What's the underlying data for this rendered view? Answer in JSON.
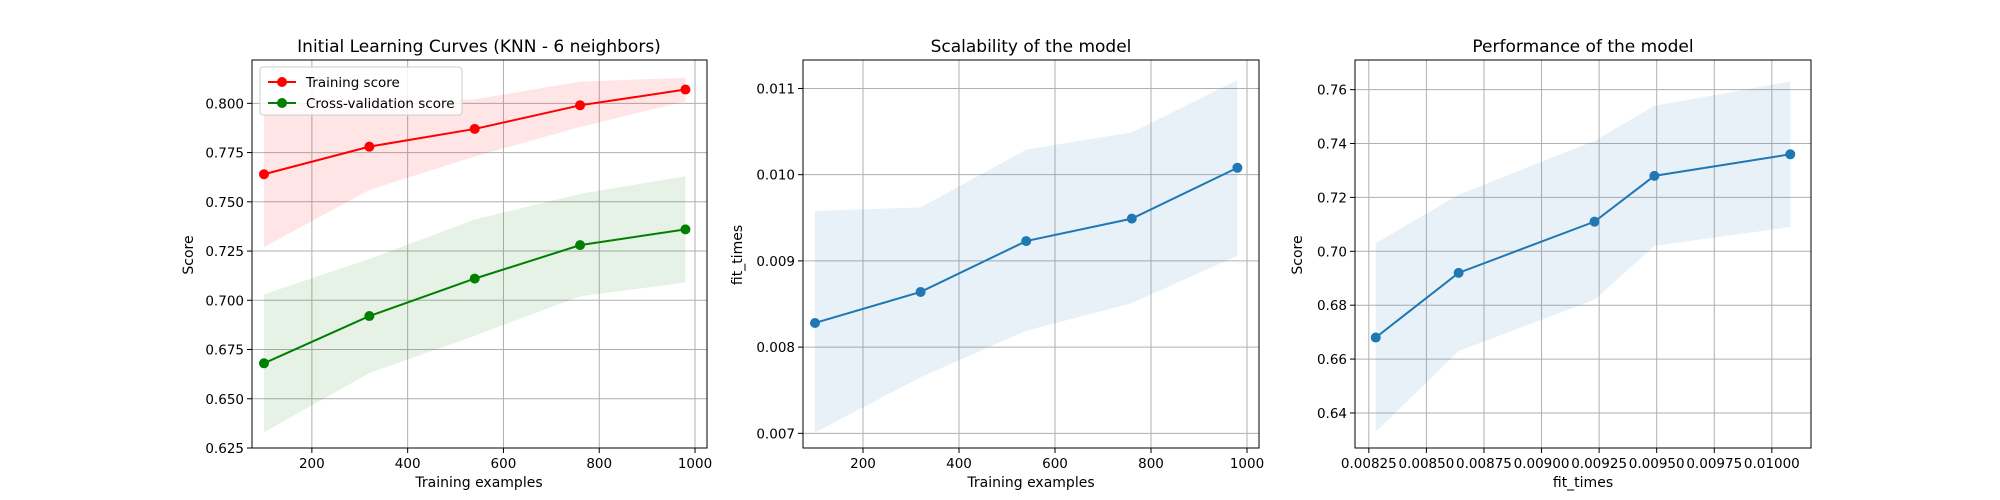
{
  "chart_data": [
    {
      "type": "line",
      "title": "Initial Learning Curves (KNN - 6 neighbors)",
      "xlabel": "Training examples",
      "ylabel": "Score",
      "xlim": [
        75,
        1025
      ],
      "ylim": [
        0.625,
        0.822
      ],
      "xticks": [
        200,
        400,
        600,
        800,
        1000
      ],
      "yticks": [
        0.625,
        0.65,
        0.675,
        0.7,
        0.725,
        0.75,
        0.775,
        0.8
      ],
      "xtick_labels": [
        "200",
        "400",
        "600",
        "800",
        "1000"
      ],
      "ytick_labels": [
        "0.625",
        "0.650",
        "0.675",
        "0.700",
        "0.725",
        "0.750",
        "0.775",
        "0.800"
      ],
      "grid": true,
      "legend_position": "upper-left",
      "x": [
        100,
        320,
        540,
        760,
        980
      ],
      "series": [
        {
          "name": "Training score",
          "color": "#ff0000",
          "values": [
            0.764,
            0.778,
            0.787,
            0.799,
            0.807
          ],
          "lower": [
            0.727,
            0.756,
            0.773,
            0.788,
            0.801
          ],
          "upper": [
            0.8,
            0.8,
            0.802,
            0.811,
            0.813
          ]
        },
        {
          "name": "Cross-validation score",
          "color": "#008000",
          "values": [
            0.668,
            0.692,
            0.711,
            0.728,
            0.736
          ],
          "lower": [
            0.633,
            0.663,
            0.682,
            0.702,
            0.709
          ],
          "upper": [
            0.703,
            0.721,
            0.741,
            0.754,
            0.763
          ]
        }
      ]
    },
    {
      "type": "line",
      "title": "Scalability of the model",
      "xlabel": "Training examples",
      "ylabel": "fit_times",
      "xlim": [
        75,
        1025
      ],
      "ylim": [
        0.00683,
        0.01133
      ],
      "xticks": [
        200,
        400,
        600,
        800,
        1000
      ],
      "yticks": [
        0.007,
        0.008,
        0.009,
        0.01,
        0.011
      ],
      "xtick_labels": [
        "200",
        "400",
        "600",
        "800",
        "1000"
      ],
      "ytick_labels": [
        "0.007",
        "0.008",
        "0.009",
        "0.010",
        "0.011"
      ],
      "grid": true,
      "x": [
        100,
        320,
        540,
        760,
        980
      ],
      "series": [
        {
          "color": "#1f77b4",
          "values": [
            0.00828,
            0.00864,
            0.00923,
            0.00949,
            0.01008
          ],
          "lower": [
            0.00701,
            0.00765,
            0.00819,
            0.00851,
            0.00906
          ],
          "upper": [
            0.00958,
            0.00962,
            0.01029,
            0.01049,
            0.0111
          ]
        }
      ]
    },
    {
      "type": "line",
      "title": "Performance of the model",
      "xlabel": "fit_times",
      "ylabel": "Score",
      "xlim": [
        0.00819,
        0.01017
      ],
      "ylim": [
        0.627,
        0.771
      ],
      "xticks": [
        0.00825,
        0.0085,
        0.00875,
        0.009,
        0.00925,
        0.0095,
        0.00975,
        0.01
      ],
      "yticks": [
        0.64,
        0.66,
        0.68,
        0.7,
        0.72,
        0.74,
        0.76
      ],
      "xtick_labels": [
        "0.00825",
        "0.00850",
        "0.00875",
        "0.00900",
        "0.00925",
        "0.00950",
        "0.00975",
        "0.01000"
      ],
      "ytick_labels": [
        "0.64",
        "0.66",
        "0.68",
        "0.70",
        "0.72",
        "0.74",
        "0.76"
      ],
      "grid": true,
      "x": [
        0.00828,
        0.00864,
        0.00923,
        0.00949,
        0.01008
      ],
      "series": [
        {
          "color": "#1f77b4",
          "values": [
            0.668,
            0.692,
            0.711,
            0.728,
            0.736
          ],
          "lower": [
            0.633,
            0.663,
            0.682,
            0.702,
            0.709
          ],
          "upper": [
            0.703,
            0.721,
            0.741,
            0.754,
            0.763
          ]
        }
      ]
    }
  ]
}
